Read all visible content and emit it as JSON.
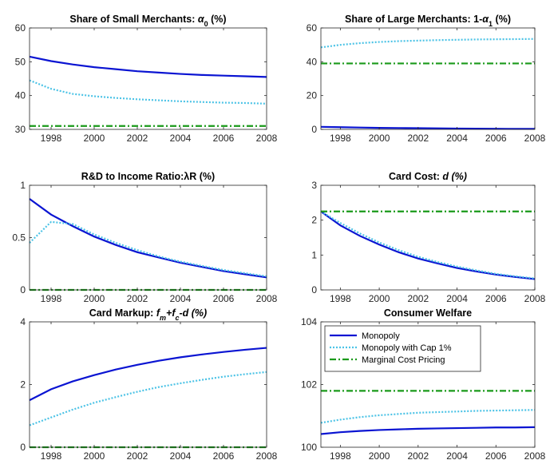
{
  "chart_data": [
    {
      "type": "line",
      "title": [
        {
          "text": "Share of Small Merchants: "
        },
        {
          "text": "α",
          "italic": true
        },
        {
          "text": "0",
          "sub": true
        },
        {
          "text": " (%)"
        }
      ],
      "x": [
        1997,
        1998,
        1999,
        2000,
        2001,
        2002,
        2003,
        2004,
        2005,
        2006,
        2007,
        2008
      ],
      "xlim": [
        1997,
        2008
      ],
      "xticks": [
        1998,
        2000,
        2002,
        2004,
        2006,
        2008
      ],
      "ylim": [
        30,
        60
      ],
      "yticks": [
        30,
        40,
        50,
        60
      ],
      "series": [
        {
          "color": "#0a14d2",
          "style": "solid",
          "values": [
            51.5,
            50.2,
            49.2,
            48.4,
            47.8,
            47.2,
            46.8,
            46.4,
            46.1,
            45.9,
            45.7,
            45.5
          ]
        },
        {
          "color": "#4cc3e6",
          "style": "dotted",
          "values": [
            44.5,
            42.0,
            40.5,
            39.8,
            39.3,
            38.9,
            38.6,
            38.3,
            38.1,
            37.9,
            37.8,
            37.6
          ]
        },
        {
          "color": "#1a9a1a",
          "style": "dashdot",
          "values": [
            31,
            31,
            31,
            31,
            31,
            31,
            31,
            31,
            31,
            31,
            31,
            31
          ]
        }
      ]
    },
    {
      "type": "line",
      "title": [
        {
          "text": "Share of Large Merchants: 1-"
        },
        {
          "text": "α",
          "italic": true
        },
        {
          "text": "1",
          "sub": true
        },
        {
          "text": " (%)"
        }
      ],
      "x": [
        1997,
        1998,
        1999,
        2000,
        2001,
        2002,
        2003,
        2004,
        2005,
        2006,
        2007,
        2008
      ],
      "xlim": [
        1997,
        2008
      ],
      "xticks": [
        1998,
        2000,
        2002,
        2004,
        2006,
        2008
      ],
      "ylim": [
        0,
        60
      ],
      "yticks": [
        0,
        20,
        40,
        60
      ],
      "series": [
        {
          "color": "#0a14d2",
          "style": "solid",
          "values": [
            1.5,
            1.3,
            1.1,
            0.9,
            0.8,
            0.7,
            0.6,
            0.5,
            0.4,
            0.35,
            0.3,
            0.3
          ]
        },
        {
          "color": "#4cc3e6",
          "style": "dotted",
          "values": [
            48.5,
            50,
            51,
            51.7,
            52.2,
            52.5,
            52.8,
            53,
            53.2,
            53.3,
            53.4,
            53.5
          ]
        },
        {
          "color": "#1a9a1a",
          "style": "dashdot",
          "values": [
            39,
            39,
            39,
            39,
            39,
            39,
            39,
            39,
            39,
            39,
            39,
            39
          ]
        }
      ]
    },
    {
      "type": "line",
      "title": [
        {
          "text": "R&D to Income Ratio:"
        },
        {
          "text": "λ"
        },
        {
          "text": "R (%)"
        }
      ],
      "x": [
        1997,
        1998,
        1999,
        2000,
        2001,
        2002,
        2003,
        2004,
        2005,
        2006,
        2007,
        2008
      ],
      "xlim": [
        1997,
        2008
      ],
      "xticks": [
        1998,
        2000,
        2002,
        2004,
        2006,
        2008
      ],
      "ylim": [
        0,
        1
      ],
      "yticks": [
        0,
        0.5,
        1
      ],
      "series": [
        {
          "color": "#0a14d2",
          "style": "solid",
          "values": [
            0.87,
            0.72,
            0.61,
            0.51,
            0.43,
            0.36,
            0.31,
            0.26,
            0.22,
            0.18,
            0.15,
            0.12
          ]
        },
        {
          "color": "#4cc3e6",
          "style": "dotted",
          "values": [
            0.45,
            0.65,
            0.63,
            0.53,
            0.45,
            0.38,
            0.32,
            0.27,
            0.23,
            0.19,
            0.16,
            0.13
          ]
        },
        {
          "color": "#1a9a1a",
          "style": "dashdot",
          "values": [
            0,
            0,
            0,
            0,
            0,
            0,
            0,
            0,
            0,
            0,
            0,
            0
          ]
        }
      ]
    },
    {
      "type": "line",
      "title": [
        {
          "text": "Card Cost:  "
        },
        {
          "text": "d (%)",
          "italic": true
        }
      ],
      "x": [
        1997,
        1998,
        1999,
        2000,
        2001,
        2002,
        2003,
        2004,
        2005,
        2006,
        2007,
        2008
      ],
      "xlim": [
        1997,
        2008
      ],
      "xticks": [
        1998,
        2000,
        2002,
        2004,
        2006,
        2008
      ],
      "ylim": [
        0,
        3
      ],
      "yticks": [
        0,
        1,
        2,
        3
      ],
      "series": [
        {
          "color": "#0a14d2",
          "style": "solid",
          "values": [
            2.25,
            1.85,
            1.55,
            1.3,
            1.08,
            0.9,
            0.76,
            0.63,
            0.53,
            0.44,
            0.37,
            0.31
          ]
        },
        {
          "color": "#4cc3e6",
          "style": "dotted",
          "values": [
            2.25,
            1.92,
            1.62,
            1.36,
            1.14,
            0.95,
            0.8,
            0.67,
            0.56,
            0.46,
            0.39,
            0.33
          ]
        },
        {
          "color": "#1a9a1a",
          "style": "dashdot",
          "values": [
            2.25,
            2.25,
            2.25,
            2.25,
            2.25,
            2.25,
            2.25,
            2.25,
            2.25,
            2.25,
            2.25,
            2.25
          ]
        }
      ]
    },
    {
      "type": "line",
      "title": [
        {
          "text": "Card Markup:  "
        },
        {
          "text": "f",
          "italic": true
        },
        {
          "text": "m",
          "italic": true,
          "sub": true
        },
        {
          "text": "+f",
          "italic": true
        },
        {
          "text": "c",
          "italic": true,
          "sub": true
        },
        {
          "text": "-d (%)",
          "italic": true
        }
      ],
      "x": [
        1997,
        1998,
        1999,
        2000,
        2001,
        2002,
        2003,
        2004,
        2005,
        2006,
        2007,
        2008
      ],
      "xlim": [
        1997,
        2008
      ],
      "xticks": [
        1998,
        2000,
        2002,
        2004,
        2006,
        2008
      ],
      "ylim": [
        0,
        4
      ],
      "yticks": [
        0,
        2,
        4
      ],
      "series": [
        {
          "color": "#0a14d2",
          "style": "solid",
          "values": [
            1.5,
            1.85,
            2.1,
            2.3,
            2.48,
            2.63,
            2.76,
            2.87,
            2.96,
            3.04,
            3.11,
            3.17
          ]
        },
        {
          "color": "#4cc3e6",
          "style": "dotted",
          "values": [
            0.7,
            0.95,
            1.2,
            1.42,
            1.6,
            1.77,
            1.92,
            2.04,
            2.15,
            2.25,
            2.33,
            2.4
          ]
        },
        {
          "color": "#1a9a1a",
          "style": "dashdot",
          "values": [
            0,
            0,
            0,
            0,
            0,
            0,
            0,
            0,
            0,
            0,
            0,
            0
          ]
        }
      ]
    },
    {
      "type": "line",
      "title": [
        {
          "text": "Consumer Welfare"
        }
      ],
      "x": [
        1997,
        1998,
        1999,
        2000,
        2001,
        2002,
        2003,
        2004,
        2005,
        2006,
        2007,
        2008
      ],
      "xlim": [
        1997,
        2008
      ],
      "xticks": [
        1998,
        2000,
        2002,
        2004,
        2006,
        2008
      ],
      "ylim": [
        100,
        104
      ],
      "yticks": [
        100,
        102,
        104
      ],
      "legend": "upper left",
      "series": [
        {
          "name": "Monopoly",
          "color": "#0a14d2",
          "style": "solid",
          "values": [
            100.42,
            100.48,
            100.52,
            100.55,
            100.57,
            100.59,
            100.6,
            100.61,
            100.62,
            100.63,
            100.63,
            100.64
          ]
        },
        {
          "name": "Monopoly with Cap 1%",
          "color": "#4cc3e6",
          "style": "dotted",
          "values": [
            100.78,
            100.88,
            100.96,
            101.02,
            101.06,
            101.1,
            101.12,
            101.14,
            101.16,
            101.17,
            101.18,
            101.19
          ]
        },
        {
          "name": "Marginal Cost Pricing",
          "color": "#1a9a1a",
          "style": "dashdot",
          "values": [
            101.8,
            101.8,
            101.8,
            101.8,
            101.8,
            101.8,
            101.8,
            101.8,
            101.8,
            101.8,
            101.8,
            101.8
          ]
        }
      ]
    }
  ]
}
